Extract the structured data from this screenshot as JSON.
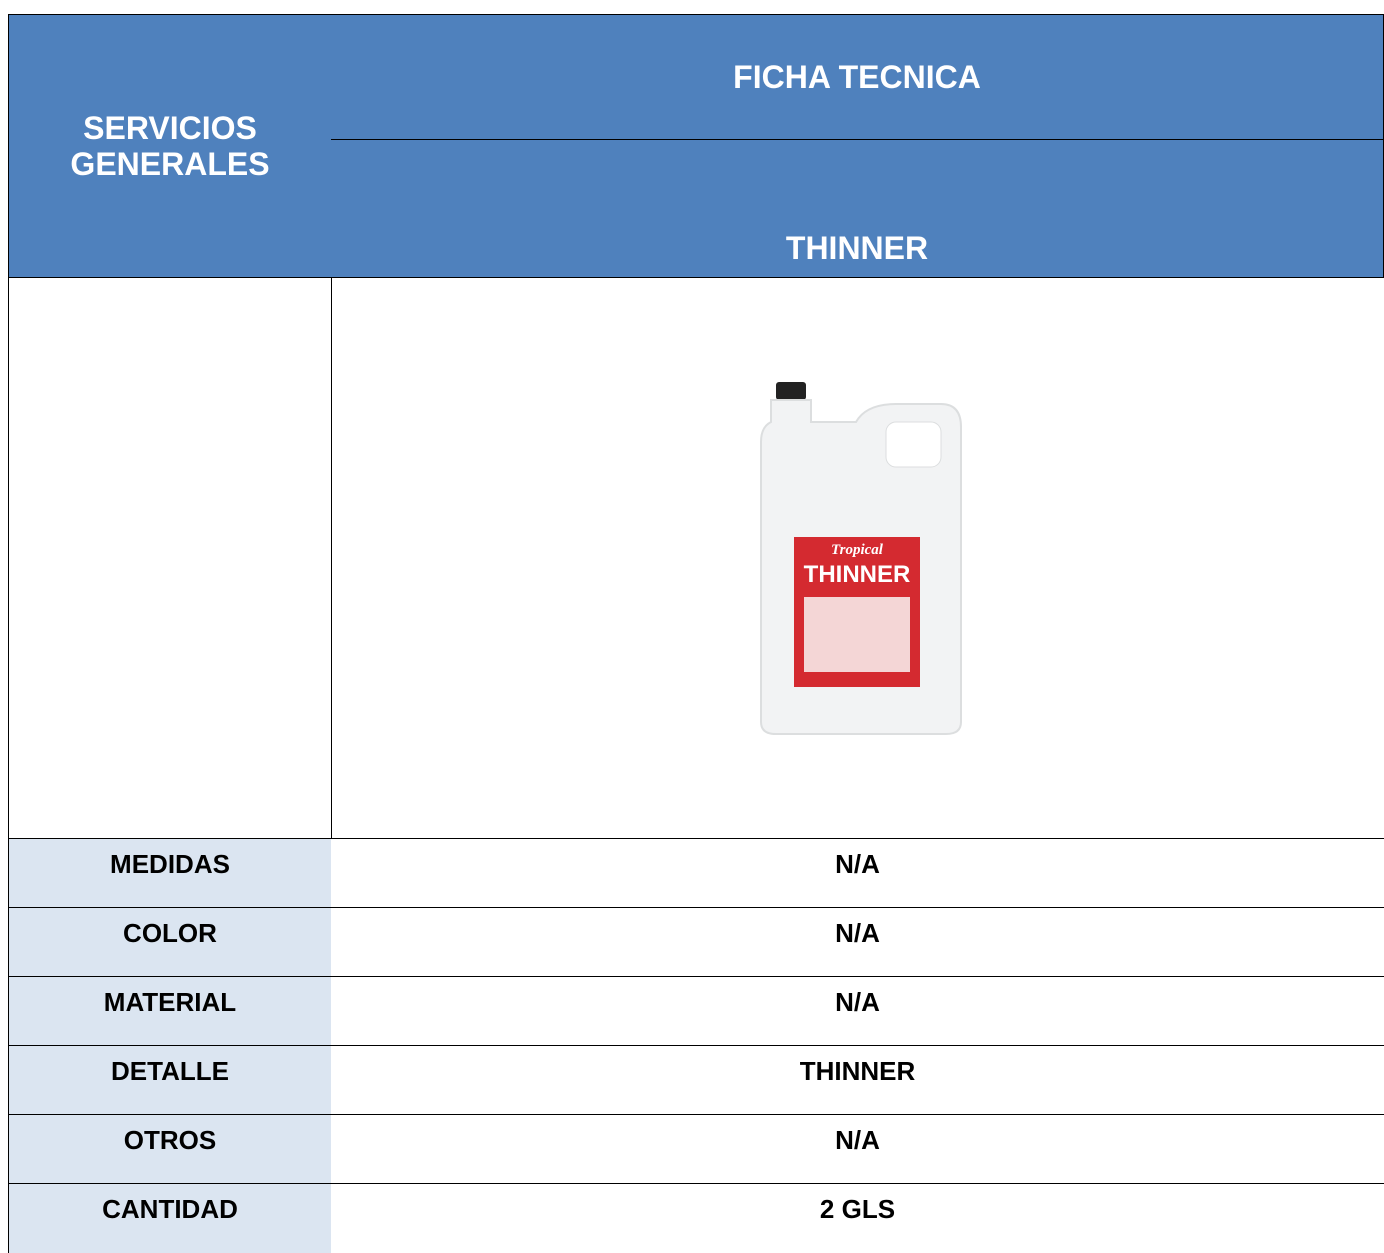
{
  "header": {
    "left_title": "SERVICIOS GENERALES",
    "title": "FICHA TECNICA",
    "subtitle": "THINNER"
  },
  "image": {
    "brand": "Tropical",
    "product": "THINNER"
  },
  "table": {
    "rows": [
      [
        "MEDIDAS",
        "N/A"
      ],
      [
        "COLOR",
        "N/A"
      ],
      [
        "MATERIAL",
        "N/A"
      ],
      [
        "DETALLE",
        "THINNER"
      ],
      [
        "OTROS",
        "N/A"
      ],
      [
        "CANTIDAD",
        "2 GLS"
      ]
    ]
  }
}
